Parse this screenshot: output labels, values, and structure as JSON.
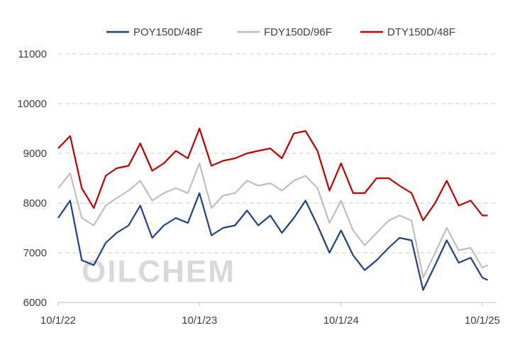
{
  "watermark": "OILCHEM",
  "chart_data": {
    "type": "line",
    "title": "",
    "xlabel": "",
    "ylabel": "",
    "ylim": [
      6000,
      11000
    ],
    "yticks": [
      6000,
      7000,
      8000,
      9000,
      10000,
      11000
    ],
    "xticks": [
      "10/1/22",
      "10/1/23",
      "10/1/24",
      "10/1/25"
    ],
    "grid": "horizontal dashed",
    "legend_position": "top",
    "x": [
      "10/1/22",
      "11/1/22",
      "12/1/22",
      "1/1/23",
      "2/1/23",
      "3/1/23",
      "4/1/23",
      "5/1/23",
      "6/1/23",
      "7/1/23",
      "8/1/23",
      "9/1/23",
      "10/1/23",
      "11/1/23",
      "12/1/23",
      "1/1/24",
      "2/1/24",
      "3/1/24",
      "4/1/24",
      "5/1/24",
      "6/1/24",
      "7/1/24",
      "8/1/24",
      "9/1/24",
      "10/1/24",
      "11/1/24",
      "12/1/24",
      "1/1/25",
      "2/1/25",
      "3/1/25",
      "4/1/25",
      "5/1/25",
      "6/1/25",
      "7/1/25",
      "8/1/25",
      "9/1/25",
      "10/1/25",
      "10/15/25"
    ],
    "series": [
      {
        "name": "POY150D/48F",
        "color": "#1f3f8f",
        "values": [
          7700,
          8050,
          6850,
          6750,
          7200,
          7400,
          7550,
          7950,
          7300,
          7550,
          7700,
          7600,
          8200,
          7350,
          7500,
          7550,
          7850,
          7550,
          7750,
          7400,
          7700,
          8050,
          7550,
          7000,
          7450,
          6950,
          6650,
          6850,
          7100,
          7300,
          7250,
          6250,
          6750,
          7250,
          6800,
          6900,
          6500,
          6450
        ]
      },
      {
        "name": "FDY150D/96F",
        "color": "#bfbfbf",
        "values": [
          8300,
          8600,
          7700,
          7550,
          7950,
          8100,
          8250,
          8450,
          8050,
          8200,
          8300,
          8200,
          8800,
          7900,
          8150,
          8200,
          8450,
          8350,
          8400,
          8250,
          8450,
          8550,
          8300,
          7600,
          8050,
          7450,
          7150,
          7400,
          7650,
          7750,
          7650,
          6500,
          7000,
          7500,
          7050,
          7100,
          6700,
          6750
        ]
      },
      {
        "name": "DTY150D/48F",
        "color": "#c00000",
        "values": [
          9100,
          9350,
          8300,
          7900,
          8550,
          8700,
          8750,
          9200,
          8650,
          8800,
          9050,
          8900,
          9500,
          8750,
          8850,
          8900,
          9000,
          9050,
          9100,
          8900,
          9400,
          9450,
          9050,
          8250,
          8800,
          8200,
          8200,
          8500,
          8500,
          8350,
          8200,
          7650,
          8000,
          8450,
          7950,
          8050,
          7750,
          7750
        ]
      }
    ]
  }
}
